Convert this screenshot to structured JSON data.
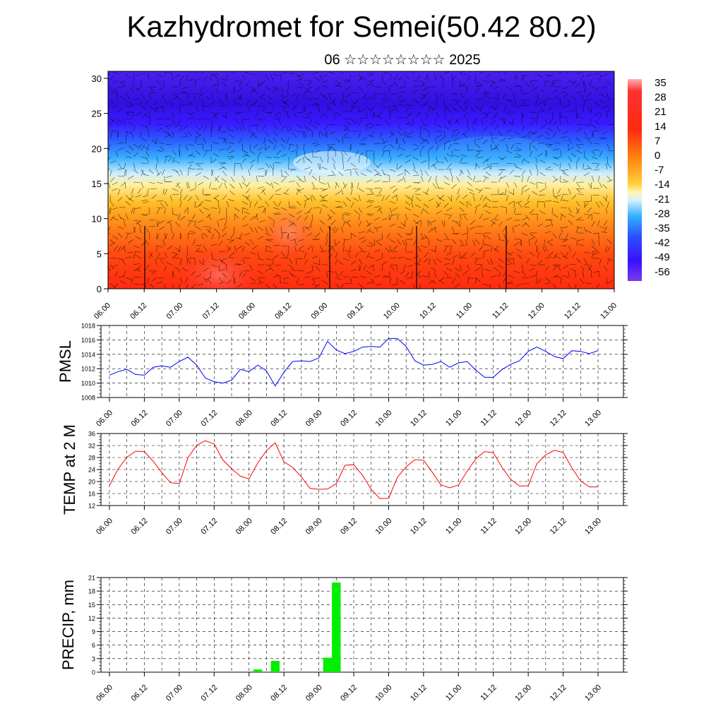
{
  "title": "Kazhydromet for Semei(50.42 80.2)",
  "subtitle": "06 ☆☆☆☆☆☆☆☆ 2025",
  "x_ticks": [
    "06.00",
    "06.12",
    "07.00",
    "07.12",
    "08.00",
    "08.12",
    "09.00",
    "09.12",
    "10.00",
    "10.12",
    "11.00",
    "11.12",
    "12.00",
    "12.12",
    "13.00"
  ],
  "colors": {
    "pmsl": "#0000ff",
    "temp": "#ff0000",
    "precip": "#00ee00"
  },
  "chart_data": [
    {
      "type": "heatmap",
      "title": "",
      "ylabel": "",
      "y_ticks": [
        0,
        5,
        10,
        15,
        20,
        25,
        30
      ],
      "ylim": [
        0,
        31
      ],
      "colorbar_labels": [
        "35",
        "28",
        "21",
        "14",
        "7",
        "0",
        "-7",
        "-14",
        "-21",
        "-28",
        "-35",
        "-42",
        "-49",
        "-56"
      ],
      "grid": false
    },
    {
      "type": "line",
      "ylabel": "PMSL",
      "y_ticks": [
        1008,
        1010,
        1012,
        1014,
        1016,
        1018
      ],
      "ylim": [
        1008,
        1018
      ],
      "series": [
        {
          "values": [
            1011.1,
            1011.6,
            1011.9,
            1011.2,
            1011.1,
            1012.2,
            1012.4,
            1012.2,
            1013.0,
            1013.6,
            1012.5,
            1010.7,
            1010.2,
            1010.0,
            1010.4,
            1011.9,
            1011.6,
            1012.5,
            1011.7,
            1009.6,
            1011.5,
            1013.0,
            1013.1,
            1013.0,
            1013.5,
            1015.8,
            1014.6,
            1014.1,
            1014.4,
            1015.0,
            1015.1,
            1015.0,
            1016.2,
            1016.2,
            1015.1,
            1013.1,
            1012.5,
            1012.6,
            1013.0,
            1012.2,
            1012.8,
            1013.0,
            1011.8,
            1010.8,
            1010.8,
            1011.9,
            1012.6,
            1013.1,
            1014.4,
            1015.0,
            1014.4,
            1013.7,
            1013.4,
            1014.5,
            1014.4,
            1014.1,
            1014.5
          ]
        }
      ]
    },
    {
      "type": "line",
      "ylabel": "TEMP at 2 M",
      "y_ticks": [
        12,
        16,
        20,
        24,
        28,
        32,
        36
      ],
      "ylim": [
        12,
        36
      ],
      "series": [
        {
          "values": [
            18.7,
            24.2,
            28.1,
            30.1,
            30.0,
            26.8,
            23.0,
            19.6,
            19.3,
            27.9,
            32.1,
            33.6,
            32.5,
            27.2,
            24.3,
            21.8,
            20.9,
            26.2,
            30.3,
            32.9,
            26.6,
            24.7,
            21.5,
            17.7,
            17.4,
            17.5,
            19.3,
            25.4,
            25.6,
            22.1,
            17.4,
            14.3,
            14.4,
            21.4,
            24.9,
            27.3,
            27.1,
            23.1,
            18.9,
            17.9,
            18.8,
            23.4,
            27.6,
            30.0,
            29.6,
            24.7,
            20.7,
            18.5,
            18.6,
            26.0,
            28.9,
            30.4,
            29.7,
            24.6,
            20.2,
            18.2,
            18.2
          ]
        }
      ]
    },
    {
      "type": "bar",
      "ylabel": "PRECIP, mm",
      "y_ticks": [
        0,
        3,
        6,
        9,
        12,
        15,
        18,
        21
      ],
      "ylim": [
        0,
        21
      ],
      "bars": [
        {
          "x": "08.03",
          "value": 0.6
        },
        {
          "x": "08.09",
          "value": 2.5
        },
        {
          "x": "09.03",
          "value": 3.2
        },
        {
          "x": "09.06",
          "value": 19.9
        }
      ]
    }
  ]
}
